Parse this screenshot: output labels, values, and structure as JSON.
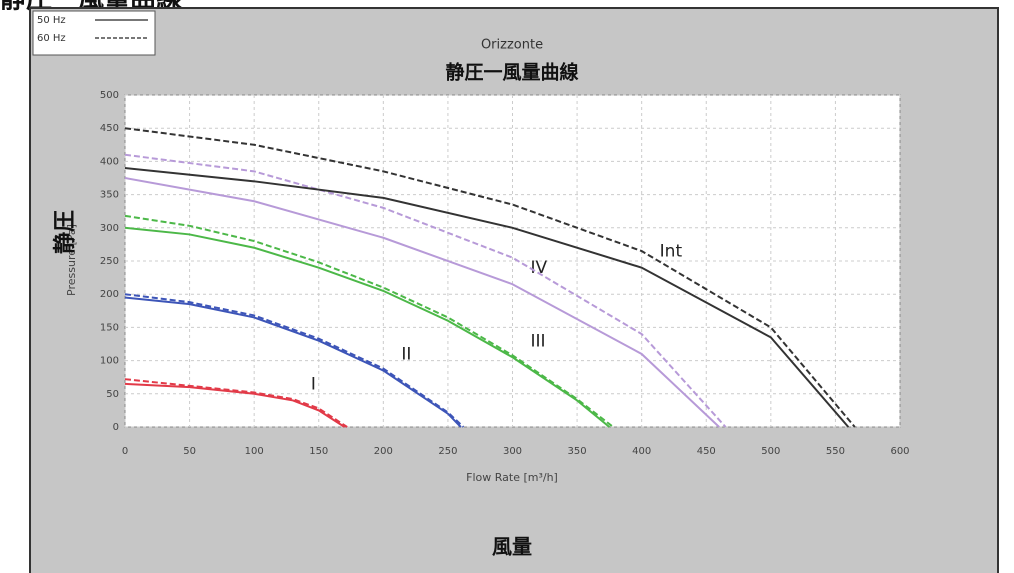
{
  "chart_data": {
    "type": "line",
    "caption": "静圧一風量曲線",
    "title": "Orizzonte",
    "subtitle": "静圧一風量曲線",
    "xlabel": "Flow Rate [m³/h]",
    "ylabel": "Pressure [Pa]",
    "ylabel_overlay": "静圧",
    "footer": "風量",
    "legend": [
      {
        "label": "50 Hz",
        "dashed": false
      },
      {
        "label": "60 Hz",
        "dashed": true
      }
    ],
    "xlim": [
      0,
      600
    ],
    "ylim": [
      0,
      500
    ],
    "xticks": [
      0,
      50,
      100,
      150,
      200,
      250,
      300,
      350,
      400,
      450,
      500,
      550,
      600
    ],
    "yticks": [
      0,
      50,
      100,
      150,
      200,
      250,
      300,
      350,
      400,
      450,
      500
    ],
    "grid": true,
    "series": [
      {
        "name": "I",
        "color": "#e23a48",
        "dashed": false,
        "x": [
          0,
          50,
          100,
          130,
          150,
          170
        ],
        "values": [
          65,
          60,
          50,
          40,
          25,
          0
        ]
      },
      {
        "color": "#e23a48",
        "dashed": true,
        "x": [
          0,
          50,
          100,
          130,
          150,
          172
        ],
        "values": [
          72,
          62,
          52,
          42,
          28,
          0
        ]
      },
      {
        "name": "II",
        "color": "#3d55b8",
        "dashed": false,
        "x": [
          0,
          50,
          100,
          150,
          200,
          250,
          260
        ],
        "values": [
          195,
          185,
          165,
          130,
          85,
          20,
          0
        ]
      },
      {
        "color": "#3d55b8",
        "dashed": true,
        "x": [
          0,
          50,
          100,
          150,
          200,
          250,
          262
        ],
        "values": [
          200,
          188,
          168,
          133,
          88,
          22,
          0
        ]
      },
      {
        "name": "III",
        "color": "#4cb848",
        "dashed": false,
        "x": [
          0,
          50,
          100,
          150,
          200,
          250,
          300,
          350,
          375
        ],
        "values": [
          300,
          290,
          270,
          240,
          205,
          160,
          105,
          40,
          0
        ]
      },
      {
        "color": "#4cb848",
        "dashed": true,
        "x": [
          0,
          50,
          100,
          150,
          200,
          250,
          300,
          350,
          378
        ],
        "values": [
          318,
          303,
          280,
          248,
          210,
          165,
          108,
          42,
          0
        ]
      },
      {
        "name": "IV",
        "color": "#b79ad8",
        "dashed": false,
        "x": [
          0,
          100,
          200,
          300,
          400,
          460
        ],
        "values": [
          375,
          340,
          285,
          215,
          110,
          0
        ]
      },
      {
        "color": "#b79ad8",
        "dashed": true,
        "x": [
          0,
          100,
          200,
          300,
          400,
          465
        ],
        "values": [
          410,
          385,
          330,
          255,
          140,
          0
        ]
      },
      {
        "name": "Int",
        "color": "#333333",
        "dashed": false,
        "x": [
          0,
          100,
          200,
          300,
          400,
          500,
          560
        ],
        "values": [
          390,
          370,
          345,
          300,
          240,
          135,
          0
        ]
      },
      {
        "color": "#333333",
        "dashed": true,
        "x": [
          0,
          100,
          200,
          300,
          400,
          500,
          565
        ],
        "values": [
          450,
          425,
          385,
          335,
          265,
          150,
          0
        ]
      }
    ]
  }
}
